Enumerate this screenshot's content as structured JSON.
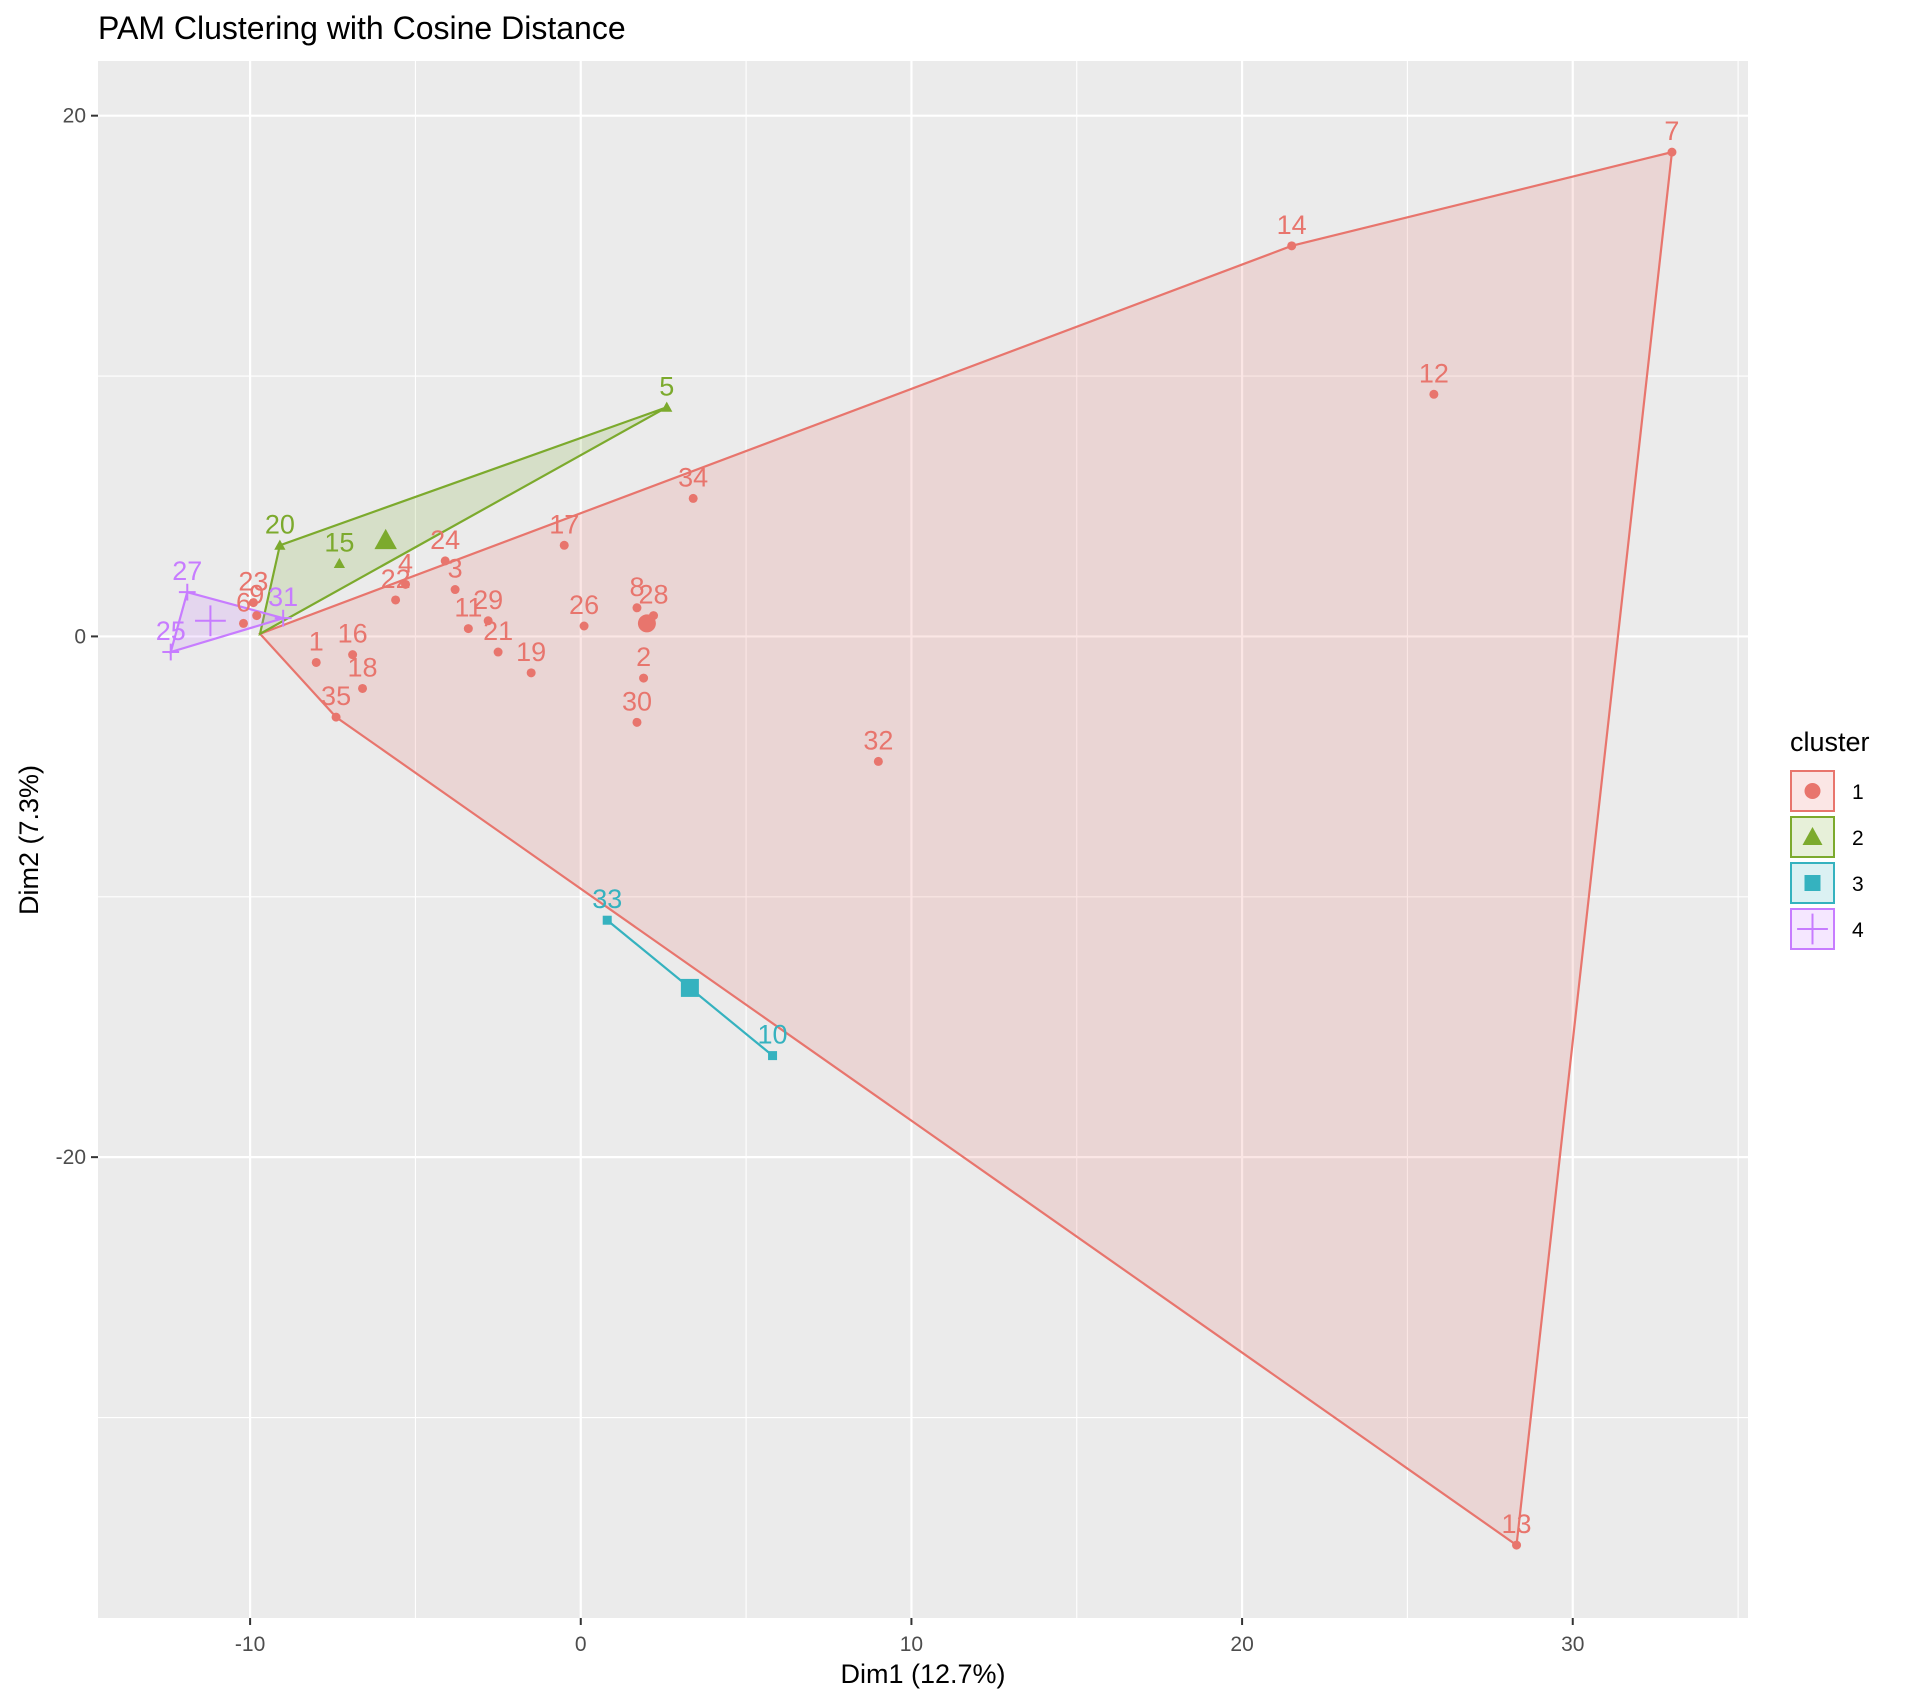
{
  "chart_data": {
    "type": "scatter",
    "title": "PAM Clustering with Cosine Distance",
    "xlabel": "Dim1 (12.7%)",
    "ylabel": "Dim2 (7.3%)",
    "xlim": [
      -14.6,
      35.3
    ],
    "ylim": [
      -37.7,
      22.1
    ],
    "x_ticks": [
      -10,
      0,
      10,
      20,
      30
    ],
    "y_ticks": [
      -20,
      0,
      20
    ],
    "x_gridlines": [
      -10,
      -5,
      0,
      5,
      10,
      15,
      20,
      25,
      30,
      35
    ],
    "y_gridlines": [
      -30,
      -20,
      -10,
      0,
      10,
      20
    ],
    "background": "#ebebeb",
    "grid_color": "#ffffff",
    "legend": {
      "title": "cluster",
      "position": "right"
    },
    "clusters": [
      {
        "name": "1",
        "color": "#e8756d",
        "shape": "circle",
        "medoid": [
          2.0,
          0.5
        ],
        "hull": [
          [
            33.0,
            18.6
          ],
          [
            21.5,
            15.0
          ],
          [
            -9.7,
            0.1
          ],
          [
            -7.4,
            -3.1
          ],
          [
            28.3,
            -34.9
          ]
        ],
        "points": [
          {
            "label": "1",
            "x": -8.0,
            "y": -1.0
          },
          {
            "label": "2",
            "x": 1.9,
            "y": -1.6
          },
          {
            "label": "3",
            "x": -3.8,
            "y": 1.8
          },
          {
            "label": "4",
            "x": -5.3,
            "y": 2.0
          },
          {
            "label": "6",
            "x": -10.2,
            "y": 0.5
          },
          {
            "label": "7",
            "x": 33.0,
            "y": 18.6
          },
          {
            "label": "8",
            "x": 1.7,
            "y": 1.1
          },
          {
            "label": "9",
            "x": -9.8,
            "y": 0.8
          },
          {
            "label": "11",
            "x": -3.4,
            "y": 0.3
          },
          {
            "label": "12",
            "x": 25.8,
            "y": 9.3
          },
          {
            "label": "13",
            "x": 28.3,
            "y": -34.9
          },
          {
            "label": "14",
            "x": 21.5,
            "y": 15.0
          },
          {
            "label": "16",
            "x": -6.9,
            "y": -0.7
          },
          {
            "label": "17",
            "x": -0.5,
            "y": 3.5
          },
          {
            "label": "18",
            "x": -6.6,
            "y": -2.0
          },
          {
            "label": "19",
            "x": -1.5,
            "y": -1.4
          },
          {
            "label": "21",
            "x": -2.5,
            "y": -0.6
          },
          {
            "label": "22",
            "x": -5.6,
            "y": 1.4
          },
          {
            "label": "23",
            "x": -9.9,
            "y": 1.3
          },
          {
            "label": "24",
            "x": -4.1,
            "y": 2.9
          },
          {
            "label": "26",
            "x": 0.1,
            "y": 0.4
          },
          {
            "label": "28",
            "x": 2.2,
            "y": 0.8
          },
          {
            "label": "29",
            "x": -2.8,
            "y": 0.6
          },
          {
            "label": "30",
            "x": 1.7,
            "y": -3.3
          },
          {
            "label": "32",
            "x": 9.0,
            "y": -4.8
          },
          {
            "label": "34",
            "x": 3.4,
            "y": 5.3
          },
          {
            "label": "35",
            "x": -7.4,
            "y": -3.1
          }
        ]
      },
      {
        "name": "2",
        "color": "#7caa2d",
        "shape": "triangle",
        "medoid": [
          -5.9,
          3.7
        ],
        "hull": [
          [
            2.6,
            8.8
          ],
          [
            -9.1,
            3.5
          ],
          [
            -9.7,
            0.1
          ]
        ],
        "points": [
          {
            "label": "5",
            "x": 2.6,
            "y": 8.8
          },
          {
            "label": "15",
            "x": -7.3,
            "y": 2.8
          },
          {
            "label": "20",
            "x": -9.1,
            "y": 3.5
          }
        ]
      },
      {
        "name": "3",
        "color": "#35b2bf",
        "shape": "square",
        "medoid": [
          3.3,
          -13.5
        ],
        "hull": [
          [
            0.8,
            -10.9
          ],
          [
            5.8,
            -16.1
          ]
        ],
        "points": [
          {
            "label": "33",
            "x": 0.8,
            "y": -10.9
          },
          {
            "label": "10",
            "x": 5.8,
            "y": -16.1
          }
        ]
      },
      {
        "name": "4",
        "color": "#c77cff",
        "shape": "cross",
        "medoid": [
          -11.2,
          0.6
        ],
        "hull": [
          [
            -11.9,
            1.7
          ],
          [
            -9.0,
            0.7
          ],
          [
            -12.4,
            -0.6
          ]
        ],
        "points": [
          {
            "label": "27",
            "x": -11.9,
            "y": 1.7
          },
          {
            "label": "25",
            "x": -12.4,
            "y": -0.6
          },
          {
            "label": "31",
            "x": -9.0,
            "y": 0.7
          }
        ]
      }
    ]
  }
}
